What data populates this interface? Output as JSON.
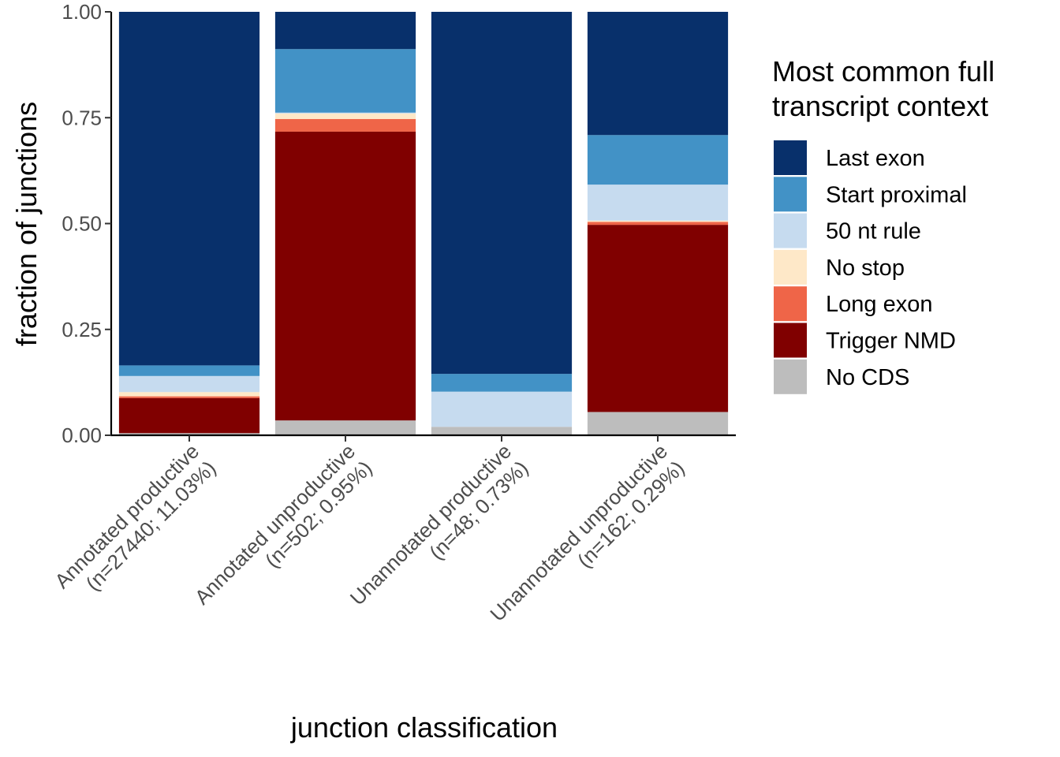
{
  "chart_data": {
    "type": "bar",
    "stacked": true,
    "xlabel": "junction classification",
    "ylabel": "fraction of junctions",
    "ylim": [
      0,
      1
    ],
    "yticks": [
      "0.00",
      "0.25",
      "0.50",
      "0.75",
      "1.00"
    ],
    "ytick_values": [
      0,
      0.25,
      0.5,
      0.75,
      1.0
    ],
    "grid": false,
    "legend_position": "right",
    "categories": [
      [
        "Annotated productive",
        "(n=27440; 11.03%)"
      ],
      [
        "Annotated unproductive",
        "(n=502; 0.95%)"
      ],
      [
        "Unannotated productive",
        "(n=48; 0.73%)"
      ],
      [
        "Unannotated unproductive",
        "(n=162; 0.29%)"
      ]
    ],
    "legend_title": [
      "Most common full",
      "transcript context"
    ],
    "series": [
      {
        "name": "No CDS",
        "color": "#BDBDBD",
        "values": [
          0.005,
          0.035,
          0.02,
          0.055
        ]
      },
      {
        "name": "Trigger NMD",
        "color": "#800000",
        "values": [
          0.083,
          0.682,
          0.0,
          0.442
        ]
      },
      {
        "name": "Long exon",
        "color": "#EF6548",
        "values": [
          0.004,
          0.03,
          0.0,
          0.007
        ]
      },
      {
        "name": "No stop",
        "color": "#FEE8C8",
        "values": [
          0.01,
          0.013,
          0.0,
          0.003
        ]
      },
      {
        "name": "50 nt rule",
        "color": "#C6DBEF",
        "values": [
          0.038,
          0.002,
          0.083,
          0.085
        ]
      },
      {
        "name": "Start proximal",
        "color": "#4292C6",
        "values": [
          0.025,
          0.15,
          0.042,
          0.117
        ]
      },
      {
        "name": "Last exon",
        "color": "#08306B",
        "values": [
          0.835,
          0.088,
          0.855,
          0.291
        ]
      }
    ],
    "legend_order": [
      "Last exon",
      "Start proximal",
      "50 nt rule",
      "No stop",
      "Long exon",
      "Trigger NMD",
      "No CDS"
    ]
  }
}
